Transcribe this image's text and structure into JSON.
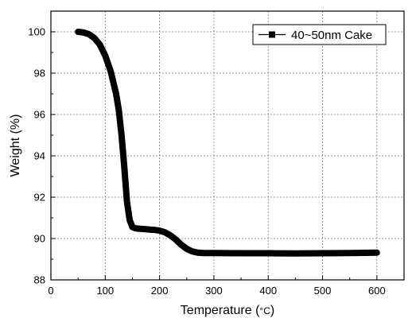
{
  "chart_data": {
    "type": "line",
    "title": "",
    "xlabel": "Temperature (",
    "xlabel_unit": "°C",
    "xlabel_close": ")",
    "ylabel": "Weight (%)",
    "xlim": [
      0,
      650
    ],
    "ylim": [
      88,
      101
    ],
    "x_ticks": [
      0,
      100,
      200,
      300,
      400,
      500,
      600
    ],
    "y_ticks": [
      88,
      90,
      92,
      94,
      96,
      98,
      100
    ],
    "grid": true,
    "legend_position": "top-right",
    "series": [
      {
        "name": "40~50nm Cake",
        "color": "#000000",
        "marker": "square",
        "x": [
          50,
          60,
          70,
          80,
          90,
          100,
          110,
          120,
          125,
          130,
          135,
          140,
          145,
          150,
          155,
          160,
          170,
          180,
          190,
          200,
          210,
          220,
          230,
          240,
          250,
          260,
          270,
          280,
          300,
          350,
          400,
          450,
          500,
          550,
          600
        ],
        "y": [
          100.0,
          99.97,
          99.88,
          99.7,
          99.38,
          98.85,
          98.1,
          97.0,
          96.2,
          95.0,
          93.5,
          91.8,
          90.9,
          90.55,
          90.5,
          90.48,
          90.46,
          90.44,
          90.42,
          90.38,
          90.3,
          90.15,
          89.95,
          89.7,
          89.5,
          89.38,
          89.32,
          89.3,
          89.3,
          89.29,
          89.29,
          89.28,
          89.29,
          89.3,
          89.32
        ]
      }
    ]
  }
}
